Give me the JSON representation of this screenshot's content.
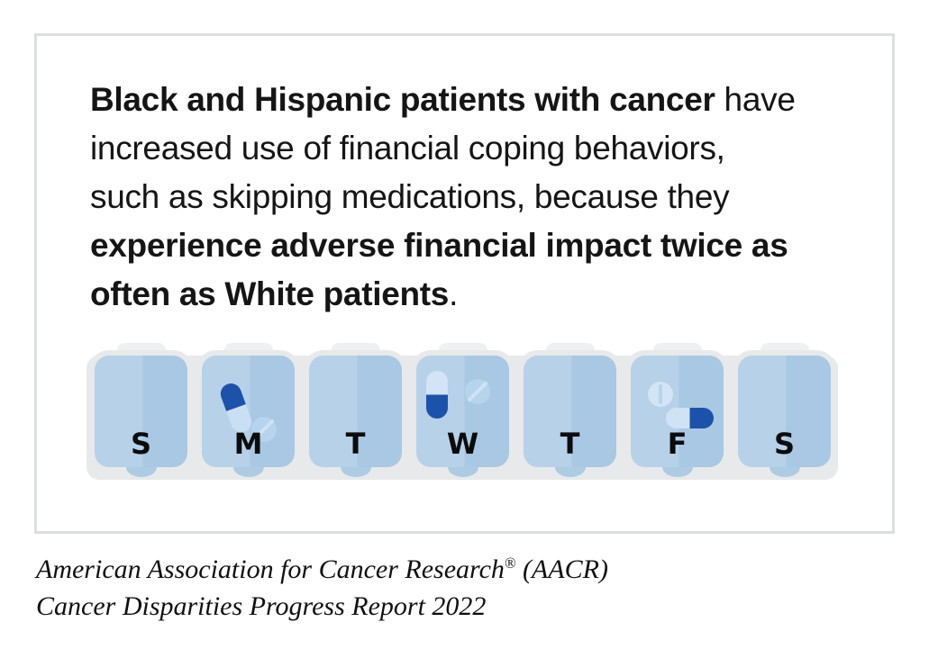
{
  "colors": {
    "panel_border": "#dcdee0",
    "tray": "#e8e9eb",
    "tray_tab": "#eef0f2",
    "cell_light": "#b7d1e9",
    "cell_dark": "#a9c8e3",
    "cell_bump": "#aecbe4",
    "pill_dark_blue": "#1c52a9",
    "capsule_light": "#c9dff3",
    "capsule_light_alt": "#d2e4f5",
    "tablet_fill": "#b6d4ee",
    "tablet_score": "#cfe3f5",
    "tablet_light_fill": "#d3e4f5",
    "tablet_light_score": "#b9d4ec",
    "headline_text": "#151515"
  },
  "headline": {
    "lines": [
      {
        "segments": [
          {
            "t": "Black and Hispanic patients with cancer",
            "b": true
          },
          {
            "t": " have",
            "b": false
          }
        ]
      },
      {
        "segments": [
          {
            "t": "increased use of financial coping behaviors,",
            "b": false
          }
        ]
      },
      {
        "segments": [
          {
            "t": "such as skipping medications, because they",
            "b": false
          }
        ]
      },
      {
        "segments": [
          {
            "t": "experience adverse financial impact twice as",
            "b": true
          }
        ]
      },
      {
        "segments": [
          {
            "t": "often as White patients",
            "b": true
          },
          {
            "t": ".",
            "b": false
          }
        ]
      }
    ]
  },
  "pill_organizer": {
    "compartments": [
      {
        "day": "S",
        "pills": []
      },
      {
        "day": "M",
        "pills": [
          {
            "type": "capsule",
            "orientation": "tilted",
            "dark_half": "top"
          },
          {
            "type": "tablet",
            "score": "diagonal"
          }
        ]
      },
      {
        "day": "T",
        "pills": []
      },
      {
        "day": "W",
        "pills": [
          {
            "type": "capsule",
            "orientation": "vertical",
            "dark_half": "bottom"
          },
          {
            "type": "tablet",
            "score": "diagonal"
          }
        ]
      },
      {
        "day": "T",
        "pills": []
      },
      {
        "day": "F",
        "pills": [
          {
            "type": "tablet",
            "score": "vertical"
          },
          {
            "type": "capsule",
            "orientation": "horizontal",
            "dark_half": "right"
          }
        ]
      },
      {
        "day": "S",
        "pills": []
      }
    ]
  },
  "attribution": {
    "line1_pre": "American Association for Cancer Research",
    "reg_mark": "®",
    "line1_post": " (AACR)",
    "line2": "Cancer Disparities Progress Report 2022"
  }
}
